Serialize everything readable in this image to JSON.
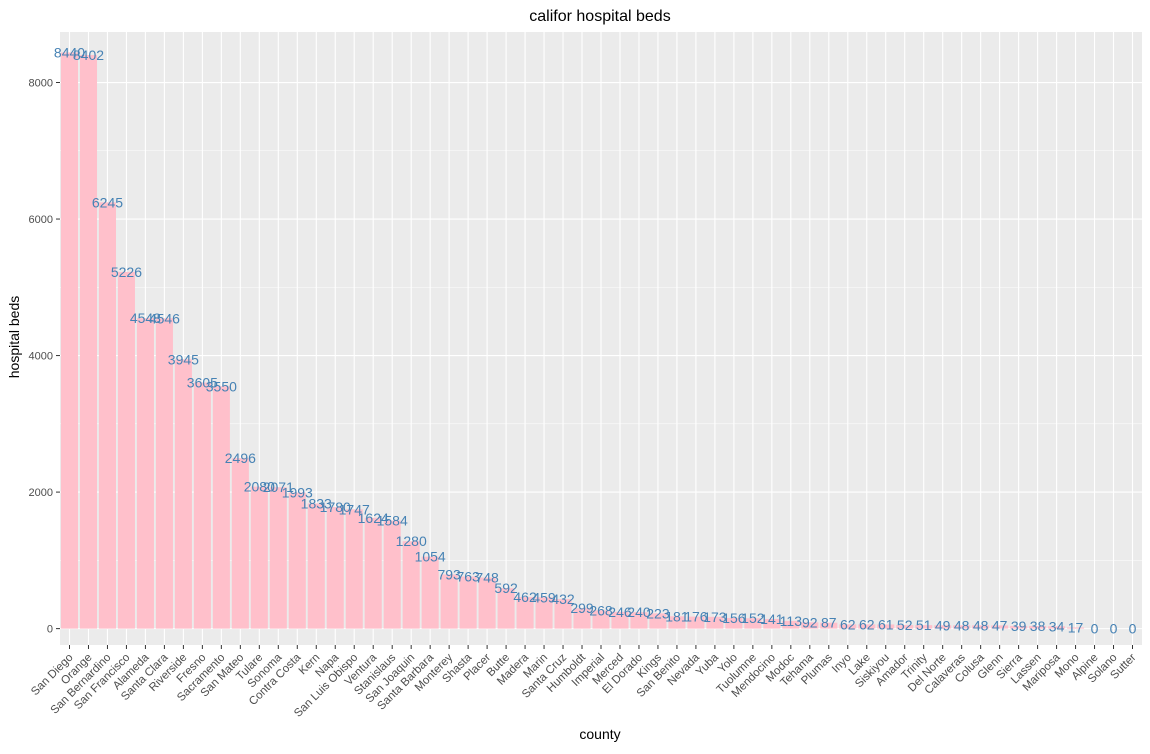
{
  "chart_data": {
    "type": "bar",
    "title": "califor hospital beds",
    "xlabel": "county",
    "ylabel": "hospital beds",
    "ylim": [
      -240,
      8740
    ],
    "yticks": [
      0,
      2000,
      4000,
      6000,
      8000
    ],
    "grid": true,
    "bar_color": "#ffc0cb",
    "label_color": "#4682b4",
    "panel_color": "#ebebeb",
    "categories": [
      "San Diego",
      "Orange",
      "San Bernardino",
      "San Francisco",
      "Alameda",
      "Santa Clara",
      "Riverside",
      "Fresno",
      "Sacramento",
      "San Mateo",
      "Tulare",
      "Sonoma",
      "Contra Costa",
      "Kern",
      "Napa",
      "San Luis Obispo",
      "Ventura",
      "Stanislaus",
      "San Joaquin",
      "Santa Barbara",
      "Monterey",
      "Shasta",
      "Placer",
      "Butte",
      "Madera",
      "Marin",
      "Santa Cruz",
      "Humboldt",
      "Imperial",
      "Merced",
      "El Dorado",
      "Kings",
      "San Benito",
      "Nevada",
      "Yuba",
      "Yolo",
      "Tuolumne",
      "Mendocino",
      "Modoc",
      "Tehama",
      "Plumas",
      "Inyo",
      "Lake",
      "Siskiyou",
      "Amador",
      "Trinity",
      "Del Norte",
      "Calaveras",
      "Colusa",
      "Glenn",
      "Sierra",
      "Lassen",
      "Mariposa",
      "Mono",
      "Alpine",
      "Solano",
      "Sutter"
    ],
    "values": [
      8440,
      8402,
      6245,
      5226,
      4548,
      4546,
      3945,
      3605,
      3550,
      2496,
      2080,
      2071,
      1993,
      1833,
      1780,
      1747,
      1624,
      1584,
      1280,
      1054,
      793,
      763,
      748,
      592,
      462,
      459,
      432,
      299,
      268,
      246,
      240,
      223,
      181,
      176,
      173,
      156,
      152,
      141,
      113,
      92,
      87,
      62,
      62,
      61,
      52,
      51,
      49,
      48,
      48,
      47,
      39,
      38,
      34,
      17,
      0,
      0,
      0
    ]
  }
}
